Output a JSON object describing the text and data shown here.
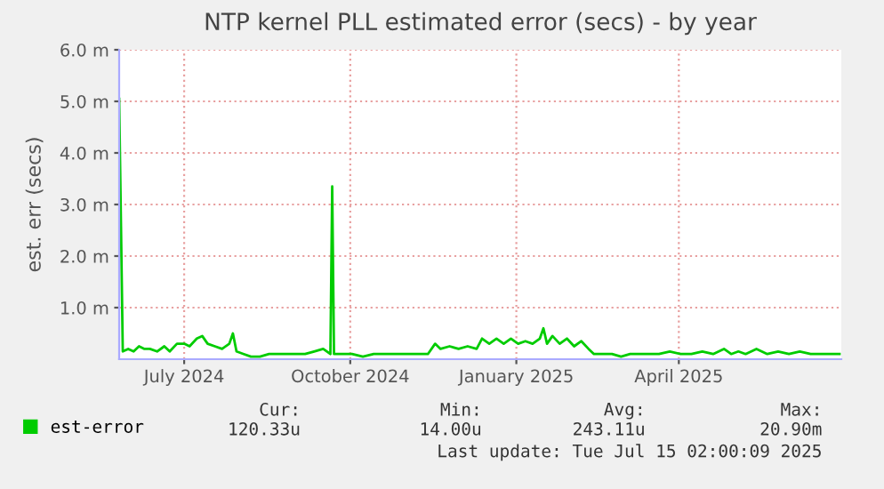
{
  "chart_data": {
    "type": "line",
    "title": "NTP kernel PLL estimated error (secs) - by year",
    "ylabel": "est. err (secs)",
    "xlim": [
      "2024-06-10",
      "2025-07-15"
    ],
    "xticks": [
      {
        "value": "2024-07-16",
        "label": "July 2024"
      },
      {
        "value": "2024-10-16",
        "label": "October 2024"
      },
      {
        "value": "2025-01-16",
        "label": "January 2025"
      },
      {
        "value": "2025-04-16",
        "label": "April 2025"
      }
    ],
    "ylim": [
      0,
      6
    ],
    "yticks": [
      {
        "value": 1,
        "label": "1.0 m"
      },
      {
        "value": 2,
        "label": "2.0 m"
      },
      {
        "value": 3,
        "label": "3.0 m"
      },
      {
        "value": 4,
        "label": "4.0 m"
      },
      {
        "value": 5,
        "label": "5.0 m"
      },
      {
        "value": 6,
        "label": "6.0 m"
      }
    ],
    "grid": true,
    "legend": "bottom",
    "marker": "none",
    "line_style": "solid",
    "annotations": [
      "Cur:",
      "Min:",
      "Avg:",
      "Max:",
      "120.33u",
      "14.00u",
      "243.11u",
      "20.90m",
      "Last update: Tue Jul 15 02:00:09 2025"
    ],
    "x": [
      "2024-06-10",
      "2024-06-12",
      "2024-06-15",
      "2024-06-18",
      "2024-06-21",
      "2024-06-24",
      "2024-06-27",
      "2024-07-01",
      "2024-07-05",
      "2024-07-08",
      "2024-07-12",
      "2024-07-16",
      "2024-07-19",
      "2024-07-23",
      "2024-07-26",
      "2024-07-29",
      "2024-08-02",
      "2024-08-06",
      "2024-08-10",
      "2024-08-12",
      "2024-08-14",
      "2024-08-18",
      "2024-08-22",
      "2024-08-27",
      "2024-09-01",
      "2024-09-06",
      "2024-09-11",
      "2024-09-16",
      "2024-09-21",
      "2024-09-26",
      "2024-10-01",
      "2024-10-05",
      "2024-10-06",
      "2024-10-07",
      "2024-10-11",
      "2024-10-17",
      "2024-10-23",
      "2024-10-29",
      "2024-11-04",
      "2024-11-10",
      "2024-11-16",
      "2024-11-22",
      "2024-11-28",
      "2024-12-02",
      "2024-12-05",
      "2024-12-10",
      "2024-12-15",
      "2024-12-20",
      "2024-12-25",
      "2024-12-28",
      "2025-01-01",
      "2025-01-05",
      "2025-01-09",
      "2025-01-13",
      "2025-01-17",
      "2025-01-21",
      "2025-01-25",
      "2025-01-29",
      "2025-01-31",
      "2025-02-02",
      "2025-02-05",
      "2025-02-09",
      "2025-02-13",
      "2025-02-17",
      "2025-02-21",
      "2025-02-25",
      "2025-02-28",
      "2025-03-05",
      "2025-03-10",
      "2025-03-15",
      "2025-03-20",
      "2025-03-25",
      "2025-03-30",
      "2025-04-05",
      "2025-04-11",
      "2025-04-17",
      "2025-04-23",
      "2025-04-29",
      "2025-05-05",
      "2025-05-11",
      "2025-05-15",
      "2025-05-19",
      "2025-05-23",
      "2025-05-29",
      "2025-06-04",
      "2025-06-10",
      "2025-06-16",
      "2025-06-22",
      "2025-06-28",
      "2025-07-04",
      "2025-07-10",
      "2025-07-14"
    ],
    "series": [
      {
        "name": "est-error",
        "color": "#00cc00",
        "values": [
          5.05,
          0.15,
          0.2,
          0.15,
          0.25,
          0.2,
          0.2,
          0.15,
          0.25,
          0.15,
          0.3,
          0.3,
          0.25,
          0.4,
          0.45,
          0.3,
          0.25,
          0.2,
          0.3,
          0.5,
          0.15,
          0.1,
          0.05,
          0.05,
          0.1,
          0.1,
          0.1,
          0.1,
          0.1,
          0.15,
          0.2,
          0.1,
          3.35,
          0.1,
          0.1,
          0.1,
          0.05,
          0.1,
          0.1,
          0.1,
          0.1,
          0.1,
          0.1,
          0.3,
          0.2,
          0.25,
          0.2,
          0.25,
          0.2,
          0.4,
          0.3,
          0.4,
          0.3,
          0.4,
          0.3,
          0.35,
          0.3,
          0.4,
          0.6,
          0.3,
          0.45,
          0.3,
          0.4,
          0.25,
          0.35,
          0.2,
          0.1,
          0.1,
          0.1,
          0.05,
          0.1,
          0.1,
          0.1,
          0.1,
          0.15,
          0.1,
          0.1,
          0.15,
          0.1,
          0.2,
          0.1,
          0.15,
          0.1,
          0.2,
          0.1,
          0.15,
          0.1,
          0.15,
          0.1,
          0.1,
          0.1,
          0.1
        ]
      }
    ]
  }
}
